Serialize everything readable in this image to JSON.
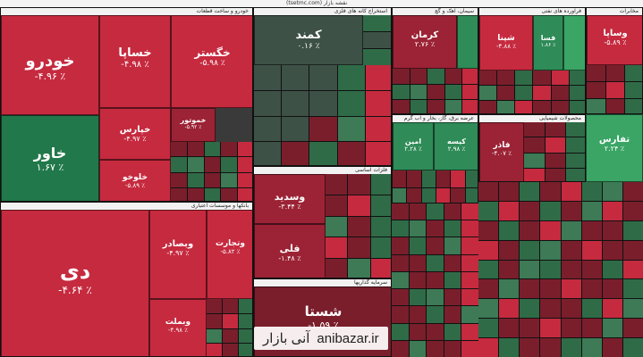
{
  "topbar": {
    "text": "(tsetmc.com) نقشه بازار"
  },
  "sectors": {
    "car": "خودرو و ساخت قطعات",
    "chem": "محصولات شیمیایی",
    "bank": "بانکها و موسسات اعتباری",
    "metal": "فلزات اساسی",
    "oil": "فراورده های نفتی",
    "mine": "استخراج کانه های فلزی",
    "cement": "سیمان، آهک و گچ",
    "other": "عرضه برق، گاز، بخار و آب گرم",
    "invest": "سرمایه گذاریها",
    "telecom": "مخابرات"
  },
  "tiles": [
    {
      "sym": "خودرو",
      "chg": "-۴.۹۶ ٪"
    },
    {
      "sym": "خساپا",
      "chg": "-۴.۹۸ ٪"
    },
    {
      "sym": "خگستر",
      "chg": "-۵.۹۸ ٪"
    },
    {
      "sym": "خاور",
      "chg": "۱.۶۷ ٪"
    },
    {
      "sym": "خپارس",
      "chg": "-۴.۹۷ ٪"
    },
    {
      "sym": "خلوخو",
      "chg": "-۵.۸۹ ٪"
    },
    {
      "sym": "خموتور",
      "chg": "-۵.۹۲ ٪"
    },
    {
      "sym": "کمند",
      "chg": "۰.۱۶ ٪"
    },
    {
      "sym": "کرمان",
      "chg": "۲.۷۶ ٪"
    },
    {
      "sym": "وساپا",
      "chg": "-۵.۸۹ ٪"
    },
    {
      "sym": "دی",
      "chg": "-۴.۶۴ ٪"
    },
    {
      "sym": "وبصادر",
      "chg": "-۴.۹۷ ٪"
    },
    {
      "sym": "وتجارت",
      "chg": "-۵.۸۲ ٪"
    },
    {
      "sym": "وبملت",
      "chg": "-۴.۹۸ ٪"
    },
    {
      "sym": "وسدید",
      "chg": "-۳.۴۴ ٪"
    },
    {
      "sym": "فلی",
      "chg": "-۱.۴۸ ٪"
    },
    {
      "sym": "شستا",
      "chg": "-۱.۵۹ ٪"
    },
    {
      "sym": "فاذر",
      "chg": "-۴.۰۷ ٪"
    },
    {
      "sym": "تفارس",
      "chg": "۲.۲۴ ٪"
    },
    {
      "sym": "شپنا",
      "chg": "-۴.۸۸ ٪"
    },
    {
      "sym": "فسا",
      "chg": "۱.۸۶ ٪"
    },
    {
      "sym": "امین",
      "chg": "۲.۲۸ ٪"
    },
    {
      "sym": "کیسه",
      "chg": "۲.۹۸ ٪"
    }
  ],
  "watermark": {
    "fa": "آنی بازار",
    "en": "anibazar.ir"
  }
}
